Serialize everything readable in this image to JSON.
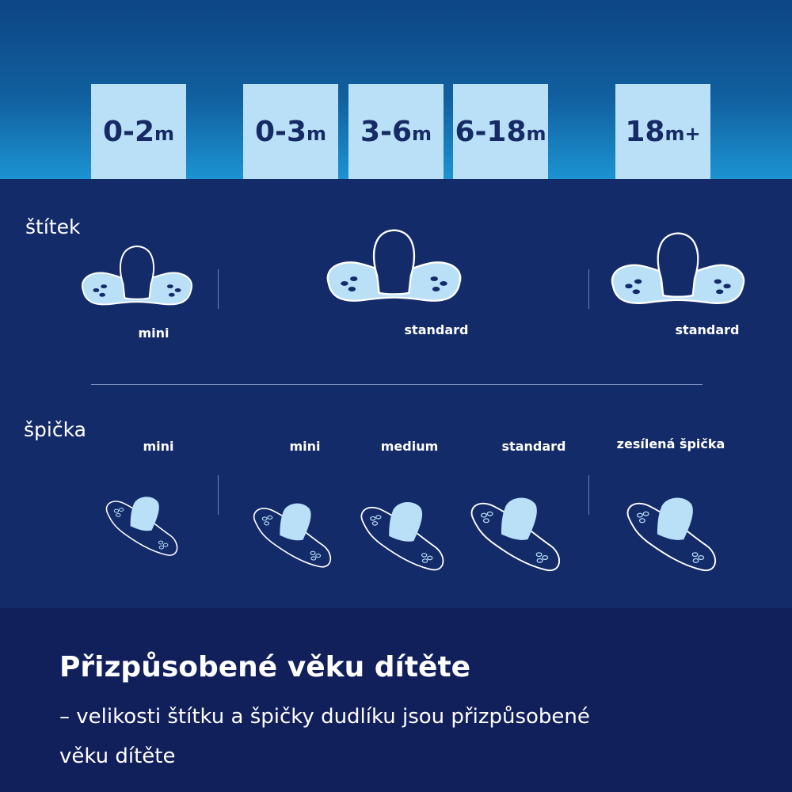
{
  "ages": [
    {
      "num": "0-2",
      "unit": "m"
    },
    {
      "num": "0-3",
      "unit": "m"
    },
    {
      "num": "3-6",
      "unit": "m"
    },
    {
      "num": "6-18",
      "unit": "m"
    },
    {
      "num": "18",
      "unit": "m+"
    }
  ],
  "shield": {
    "heading": "štítek",
    "labels": [
      "mini",
      "standard",
      "standard"
    ]
  },
  "tip": {
    "heading": "špička",
    "labels": [
      "mini",
      "mini",
      "medium",
      "standard",
      "zesílená špička"
    ]
  },
  "footer": {
    "title": "Přizpůsobené věku dítěte",
    "line1": "– velikosti štítku a špičky dudlíku jsou přizpůsobené",
    "line2": "věku dítěte"
  },
  "colors": {
    "box": "#b9e0f7",
    "navy": "#142b6a",
    "footer": "#111f5b"
  }
}
